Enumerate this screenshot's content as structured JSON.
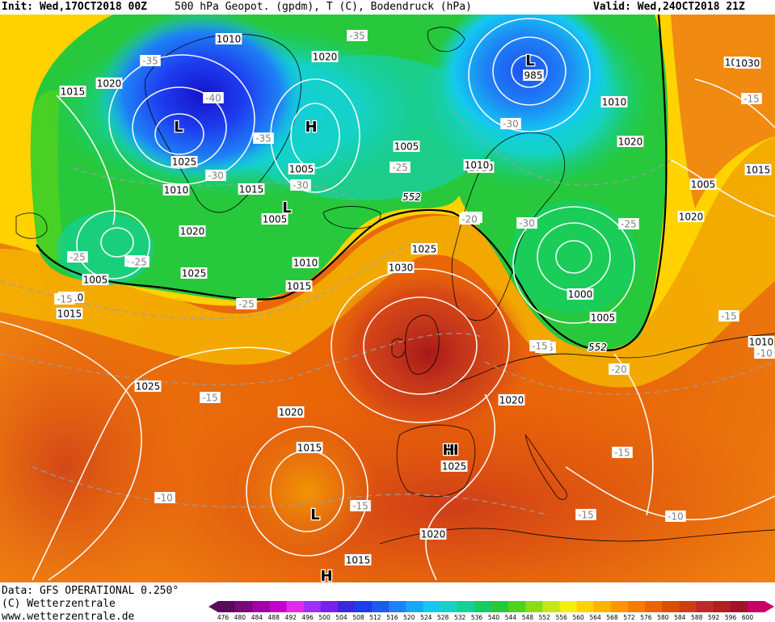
{
  "header": {
    "init": "Init: Wed,17OCT2018 00Z",
    "title": "500 hPa Geopot. (gpdm), T (C), Bodendruck (hPa)",
    "valid": "Valid: Wed,24OCT2018 21Z"
  },
  "footer": {
    "data_source": "Data: GFS OPERATIONAL 0.250°",
    "copyright": "(C) Wetterzentrale",
    "website": "www.wetterzentrale.de"
  },
  "legend": {
    "ticks": [
      "476",
      "480",
      "484",
      "488",
      "492",
      "496",
      "500",
      "504",
      "508",
      "512",
      "516",
      "520",
      "524",
      "528",
      "532",
      "536",
      "540",
      "544",
      "548",
      "552",
      "556",
      "560",
      "564",
      "568",
      "572",
      "576",
      "580",
      "584",
      "588",
      "592",
      "596",
      "600"
    ],
    "colors": [
      "#5a0a5a",
      "#780a78",
      "#a000a0",
      "#c800c8",
      "#e628e6",
      "#9b30ff",
      "#7820f0",
      "#3c28dc",
      "#1e3cf0",
      "#1e5af0",
      "#1e82f5",
      "#14aaf5",
      "#14c8f0",
      "#14d2c8",
      "#14d296",
      "#14cd64",
      "#28c83c",
      "#50d21e",
      "#8cdc14",
      "#c8e614",
      "#f0f00a",
      "#ffd200",
      "#ffb400",
      "#ff9600",
      "#f57d00",
      "#eb6400",
      "#e14b00",
      "#d23c14",
      "#c32828",
      "#b41e1e",
      "#a01428",
      "#c80064"
    ]
  },
  "map": {
    "pressure_labels": [
      "1010",
      "1020",
      "1015",
      "1020",
      "1030",
      "1025",
      "1005",
      "1010",
      "1005",
      "1015",
      "1010",
      "1020",
      "1005",
      "1015",
      "1010",
      "1025",
      "1020",
      "1005",
      "1015",
      "1010",
      "1025",
      "1030",
      "1015",
      "1025",
      "1020",
      "1015",
      "1020",
      "1025",
      "1010",
      "1000",
      "1005",
      "1030",
      "1020",
      "1005",
      "985",
      "1010",
      "1015",
      "1020",
      "1010"
    ],
    "temp_labels": [
      "-35",
      "-35",
      "-40",
      "-35",
      "-30",
      "-30",
      "-25",
      "-30",
      "-25",
      "-25",
      "-25",
      "-15",
      "-15",
      "-30",
      "-20",
      "-30",
      "-25",
      "-15",
      "-15",
      "-15",
      "-20",
      "-15",
      "-10",
      "-15",
      "-15",
      "-10",
      "-20",
      "-15",
      "-10"
    ],
    "pressure_centers": [
      "L",
      "H",
      "L",
      "L",
      "H",
      "H",
      "L",
      "H"
    ],
    "contour_label": "552"
  }
}
